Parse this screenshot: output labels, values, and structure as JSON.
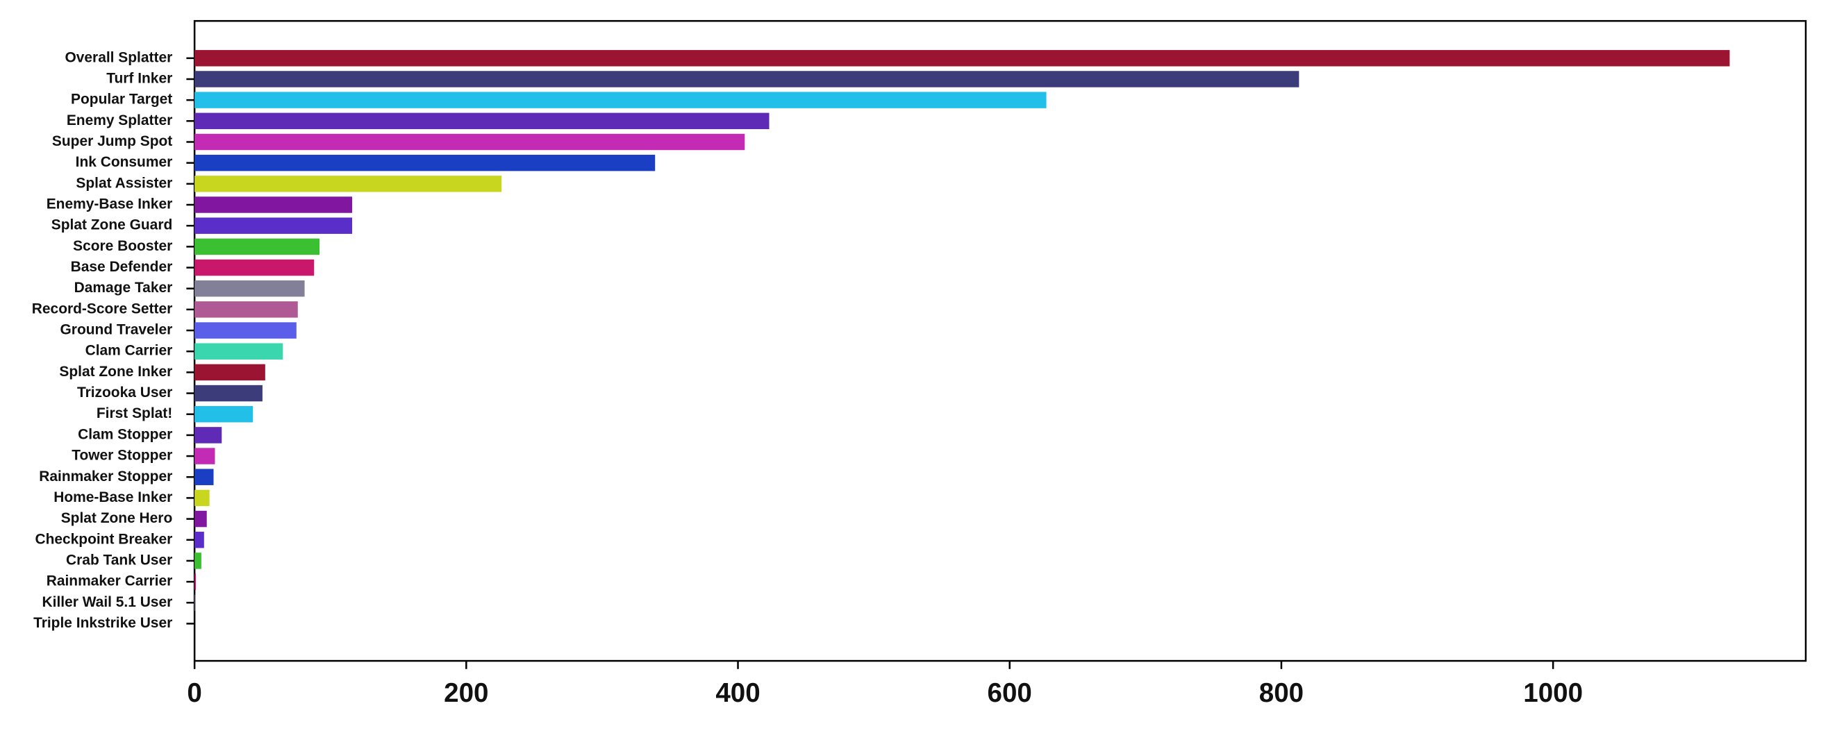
{
  "chart_data": {
    "type": "barh",
    "categories": [
      "Overall Splatter",
      "Turf Inker",
      "Popular Target",
      "Enemy Splatter",
      "Super Jump Spot",
      "Ink Consumer",
      "Splat Assister",
      "Enemy-Base Inker",
      "Splat Zone Guard",
      "Score Booster",
      "Base Defender",
      "Damage Taker",
      "Record-Score Setter",
      "Ground Traveler",
      "Clam Carrier",
      "Splat Zone Inker",
      "Trizooka User",
      "First Splat!",
      "Clam Stopper",
      "Tower Stopper",
      "Rainmaker Stopper",
      "Home-Base Inker",
      "Splat Zone Hero",
      "Checkpoint Breaker",
      "Crab Tank User",
      "Rainmaker Carrier",
      "Killer Wail 5.1 User",
      "Triple Inkstrike User"
    ],
    "values": [
      1130,
      813,
      627,
      423,
      405,
      339,
      226,
      116,
      116,
      92,
      88,
      81,
      76,
      75,
      65,
      52,
      50,
      43,
      20,
      15,
      14,
      11,
      9,
      7,
      5,
      1,
      0.4,
      0
    ],
    "colors": [
      "#9b1533",
      "#3c3c7a",
      "#22bfe8",
      "#5f2ab5",
      "#c42bb5",
      "#1b3fc2",
      "#c9d620",
      "#8117a0",
      "#5a2ec8",
      "#3ac030",
      "#c9176b",
      "#828099",
      "#b05a95",
      "#5a5ee8",
      "#3ad6ae"
    ],
    "xlim": [
      0,
      1186
    ],
    "xticks": [
      0,
      200,
      400,
      600,
      800,
      1000
    ]
  }
}
